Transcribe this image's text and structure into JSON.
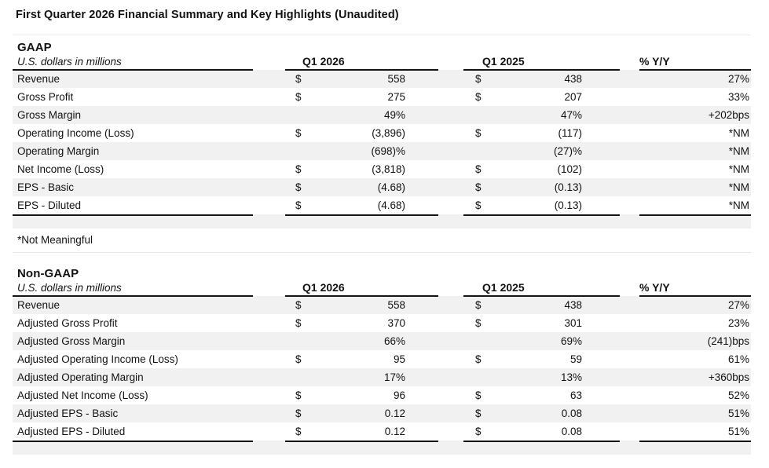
{
  "title": "First Quarter 2026 Financial Summary and Key Highlights (Unaudited)",
  "footnote": "*Not Meaningful",
  "table_headers": {
    "units_label": "U.S. dollars in millions",
    "col_q1_2026": "Q1 2026",
    "col_q1_2025": "Q1 2025",
    "col_yoy": "% Y/Y"
  },
  "colors": {
    "stripe": "#f1f1f1",
    "text": "#121212",
    "rule_heavy": "#141414",
    "rule_faint": "#e7e7e7"
  },
  "sections": [
    {
      "title": "GAAP",
      "rows": [
        {
          "label": "Revenue",
          "cur_2026": "$",
          "val_2026": "558",
          "cur_2025": "$",
          "val_2025": "438",
          "yoy": "27%"
        },
        {
          "label": "Gross Profit",
          "cur_2026": "$",
          "val_2026": "275",
          "cur_2025": "$",
          "val_2025": "207",
          "yoy": "33%"
        },
        {
          "label": "Gross Margin",
          "cur_2026": "",
          "val_2026": "49%",
          "cur_2025": "",
          "val_2025": "47%",
          "yoy": "+202bps"
        },
        {
          "label": "Operating Income (Loss)",
          "cur_2026": "$",
          "val_2026": "(3,896)",
          "cur_2025": "$",
          "val_2025": "(117)",
          "yoy": "*NM"
        },
        {
          "label": "Operating Margin",
          "cur_2026": "",
          "val_2026": "(698)%",
          "cur_2025": "",
          "val_2025": "(27)%",
          "yoy": "*NM"
        },
        {
          "label": "Net Income (Loss)",
          "cur_2026": "$",
          "val_2026": "(3,818)",
          "cur_2025": "$",
          "val_2025": "(102)",
          "yoy": "*NM"
        },
        {
          "label": "EPS - Basic",
          "cur_2026": "$",
          "val_2026": "(4.68)",
          "cur_2025": "$",
          "val_2025": "(0.13)",
          "yoy": "*NM"
        },
        {
          "label": "EPS - Diluted",
          "cur_2026": "$",
          "val_2026": "(4.68)",
          "cur_2025": "$",
          "val_2025": "(0.13)",
          "yoy": "*NM"
        }
      ]
    },
    {
      "title": "Non-GAAP",
      "rows": [
        {
          "label": "Revenue",
          "cur_2026": "$",
          "val_2026": "558",
          "cur_2025": "$",
          "val_2025": "438",
          "yoy": "27%"
        },
        {
          "label": "Adjusted Gross Profit",
          "cur_2026": "$",
          "val_2026": "370",
          "cur_2025": "$",
          "val_2025": "301",
          "yoy": "23%"
        },
        {
          "label": "Adjusted Gross Margin",
          "cur_2026": "",
          "val_2026": "66%",
          "cur_2025": "",
          "val_2025": "69%",
          "yoy": "(241)bps"
        },
        {
          "label": "Adjusted Operating Income (Loss)",
          "cur_2026": "$",
          "val_2026": "95",
          "cur_2025": "$",
          "val_2025": "59",
          "yoy": "61%"
        },
        {
          "label": "Adjusted Operating Margin",
          "cur_2026": "",
          "val_2026": "17%",
          "cur_2025": "",
          "val_2025": "13%",
          "yoy": "+360bps"
        },
        {
          "label": "Adjusted Net Income (Loss)",
          "cur_2026": "$",
          "val_2026": "96",
          "cur_2025": "$",
          "val_2025": "63",
          "yoy": "52%"
        },
        {
          "label": "Adjusted EPS - Basic",
          "cur_2026": "$",
          "val_2026": "0.12",
          "cur_2025": "$",
          "val_2025": "0.08",
          "yoy": "51%"
        },
        {
          "label": "Adjusted EPS - Diluted",
          "cur_2026": "$",
          "val_2026": "0.12",
          "cur_2025": "$",
          "val_2025": "0.08",
          "yoy": "51%"
        }
      ]
    }
  ]
}
